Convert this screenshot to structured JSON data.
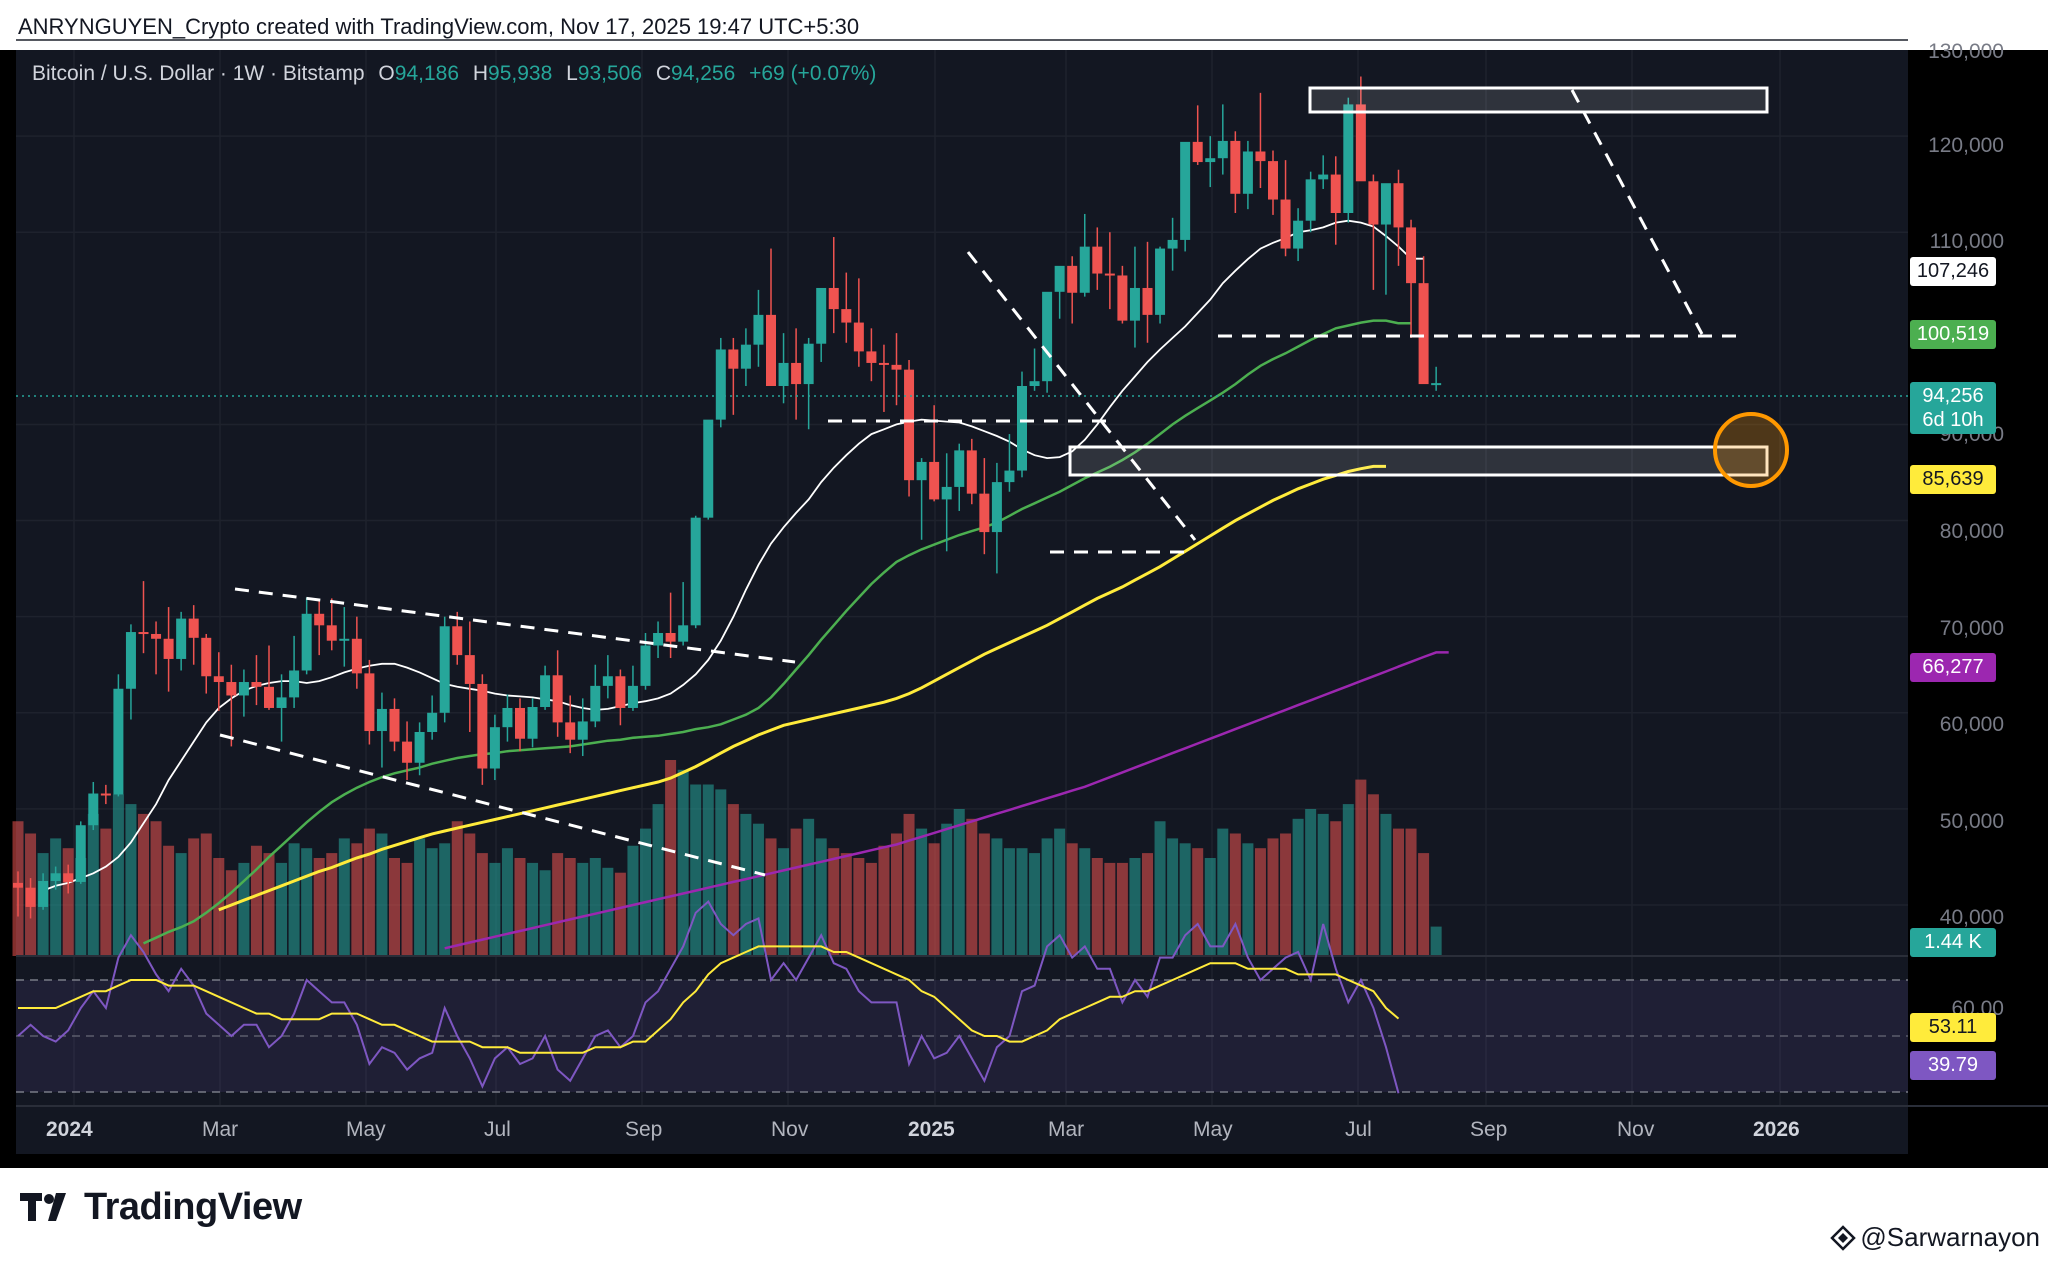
{
  "header": {
    "credit": "ANRYNGUYEN_Crypto created with TradingView.com, Nov 17, 2025 19:47 UTC+5:30"
  },
  "legend": {
    "symbol": "Bitcoin / U.S. Dollar · 1W · Bitstamp",
    "o_label": "O",
    "o": "94,186",
    "h_label": "H",
    "h": "95,938",
    "l_label": "L",
    "l": "93,506",
    "c_label": "C",
    "c": "94,256",
    "change": "+69 (+0.07%)"
  },
  "price_axis": {
    "labels": [
      "130,000",
      "120,000",
      "110,000",
      "90,000",
      "80,000",
      "70,000",
      "60,000",
      "50,000",
      "40,000"
    ]
  },
  "badges": {
    "sma_white": "107,246",
    "sma_green": "100,519",
    "price": "94,256",
    "countdown": "6d 10h",
    "sma_yellow": "85,639",
    "sma_purple": "66,277",
    "volume": "1.44 K",
    "rsi_top_label": "60.00",
    "rsi_ma": "53.11",
    "rsi": "39.79"
  },
  "time_axis": {
    "labels": [
      {
        "text": "2024",
        "bold": true
      },
      {
        "text": "Mar",
        "bold": false
      },
      {
        "text": "May",
        "bold": false
      },
      {
        "text": "Jul",
        "bold": false
      },
      {
        "text": "Sep",
        "bold": false
      },
      {
        "text": "Nov",
        "bold": false
      },
      {
        "text": "2025",
        "bold": true
      },
      {
        "text": "Mar",
        "bold": false
      },
      {
        "text": "May",
        "bold": false
      },
      {
        "text": "Jul",
        "bold": false
      },
      {
        "text": "Sep",
        "bold": false
      },
      {
        "text": "Nov",
        "bold": false
      },
      {
        "text": "2026",
        "bold": true
      }
    ]
  },
  "branding": {
    "logo": "TradingView",
    "watermark": "@Sarwarnayon"
  },
  "colors": {
    "up": "#26a69a",
    "down": "#ef5350",
    "background": "#131722",
    "sma_white": "#ffffff",
    "sma_green": "#4caf50",
    "sma_yellow": "#ffeb3b",
    "sma_purple": "#9c27b0"
  },
  "chart_data": {
    "type": "candlestick",
    "title": "Bitcoin / U.S. Dollar · 1W · Bitstamp",
    "ylim": [
      35000,
      132000
    ],
    "ticks": [
      40000,
      50000,
      60000,
      70000,
      80000,
      90000,
      110000,
      120000,
      130000
    ],
    "candles_ohlc": [
      [
        42300,
        43500,
        38800,
        41800
      ],
      [
        41800,
        42800,
        38600,
        39800
      ],
      [
        39800,
        43300,
        39500,
        42500
      ],
      [
        42500,
        44000,
        41600,
        43300
      ],
      [
        43300,
        44200,
        41200,
        42400
      ],
      [
        42400,
        48700,
        42200,
        48300
      ],
      [
        48300,
        52800,
        47800,
        51600
      ],
      [
        51600,
        52500,
        50500,
        51500
      ],
      [
        51500,
        64000,
        51300,
        62500
      ],
      [
        62500,
        69200,
        59300,
        68400
      ],
      [
        68400,
        73700,
        66200,
        68200
      ],
      [
        68200,
        69500,
        64000,
        67700
      ],
      [
        67700,
        71000,
        62200,
        65600
      ],
      [
        65600,
        70500,
        64400,
        69800
      ],
      [
        69800,
        71200,
        65000,
        67800
      ],
      [
        67800,
        68200,
        62000,
        63800
      ],
      [
        63800,
        66300,
        60200,
        63200
      ],
      [
        63200,
        65000,
        56500,
        61800
      ],
      [
        61800,
        64500,
        59600,
        63200
      ],
      [
        63200,
        66000,
        60800,
        62700
      ],
      [
        62700,
        67000,
        60300,
        60500
      ],
      [
        60500,
        64000,
        57000,
        61600
      ],
      [
        61600,
        68000,
        60500,
        64400
      ],
      [
        64400,
        72000,
        64000,
        70300
      ],
      [
        70300,
        71800,
        66000,
        69100
      ],
      [
        69100,
        71900,
        66500,
        67500
      ],
      [
        67500,
        71000,
        64800,
        67700
      ],
      [
        67700,
        70000,
        62500,
        64100
      ],
      [
        64100,
        65500,
        56700,
        58100
      ],
      [
        58100,
        62100,
        54300,
        60400
      ],
      [
        60400,
        61500,
        56000,
        57000
      ],
      [
        57000,
        59100,
        53000,
        54800
      ],
      [
        54800,
        59000,
        53500,
        58000
      ],
      [
        58000,
        61800,
        57200,
        60000
      ],
      [
        60000,
        70000,
        59000,
        69000
      ],
      [
        69000,
        70500,
        65000,
        66000
      ],
      [
        66000,
        69500,
        58000,
        63000
      ],
      [
        63000,
        64000,
        52500,
        54200
      ],
      [
        54200,
        59800,
        53000,
        58500
      ],
      [
        58500,
        61900,
        57000,
        60500
      ],
      [
        60500,
        61500,
        56000,
        57300
      ],
      [
        57300,
        61500,
        56400,
        60600
      ],
      [
        60600,
        64900,
        60300,
        63900
      ],
      [
        63900,
        66500,
        57500,
        59000
      ],
      [
        59000,
        61800,
        55800,
        57200
      ],
      [
        57200,
        61500,
        55500,
        59100
      ],
      [
        59100,
        65000,
        58500,
        62800
      ],
      [
        62800,
        66000,
        61500,
        63800
      ],
      [
        63800,
        64500,
        58700,
        60500
      ],
      [
        60500,
        64900,
        60200,
        62800
      ],
      [
        62800,
        68300,
        62400,
        67000
      ],
      [
        67000,
        69500,
        65700,
        68300
      ],
      [
        68300,
        72500,
        65700,
        67400
      ],
      [
        67400,
        73600,
        67000,
        69100
      ],
      [
        69100,
        80500,
        68800,
        80300
      ],
      [
        80300,
        90000,
        80100,
        90500
      ],
      [
        90500,
        99000,
        89700,
        97800
      ],
      [
        97800,
        99000,
        91000,
        95800
      ],
      [
        95800,
        100000,
        94000,
        98300
      ],
      [
        98300,
        104000,
        96000,
        101400
      ],
      [
        101400,
        108300,
        99000,
        94000
      ],
      [
        94000,
        99500,
        92200,
        96400
      ],
      [
        96400,
        100000,
        90500,
        94200
      ],
      [
        94200,
        99000,
        89500,
        98400
      ],
      [
        98400,
        102500,
        96500,
        104200
      ],
      [
        104200,
        109500,
        99500,
        102000
      ],
      [
        102000,
        105800,
        98500,
        100600
      ],
      [
        100600,
        105200,
        96000,
        97600
      ],
      [
        97600,
        100000,
        94500,
        96400
      ],
      [
        96400,
        98300,
        91300,
        96200
      ],
      [
        96200,
        99500,
        92000,
        95700
      ],
      [
        95700,
        96700,
        82500,
        84200
      ],
      [
        84200,
        86500,
        78000,
        86100
      ],
      [
        86100,
        92000,
        82000,
        82200
      ],
      [
        82200,
        87000,
        76800,
        83500
      ],
      [
        83500,
        88000,
        81000,
        87300
      ],
      [
        87300,
        88500,
        81700,
        82800
      ],
      [
        82800,
        86500,
        76500,
        78800
      ],
      [
        78800,
        86000,
        74500,
        84000
      ],
      [
        84000,
        89000,
        83000,
        85200
      ],
      [
        85200,
        95500,
        84500,
        94000
      ],
      [
        94000,
        97900,
        93500,
        94500
      ],
      [
        94500,
        97700,
        93300,
        103800
      ],
      [
        103800,
        106000,
        101000,
        106500
      ],
      [
        106500,
        107500,
        100500,
        103700
      ],
      [
        103700,
        111900,
        103300,
        108500
      ],
      [
        108500,
        110500,
        104000,
        105700
      ],
      [
        105700,
        110000,
        102000,
        105500
      ],
      [
        105500,
        106500,
        100500,
        100800
      ],
      [
        100800,
        108500,
        98000,
        104200
      ],
      [
        104200,
        109000,
        98500,
        101400
      ],
      [
        101400,
        108500,
        100500,
        108300
      ],
      [
        108300,
        111500,
        106000,
        109200
      ],
      [
        109200,
        119000,
        108000,
        119400
      ],
      [
        119400,
        123200,
        117000,
        117300
      ],
      [
        117300,
        120000,
        114700,
        117700
      ],
      [
        117700,
        123300,
        116000,
        119500
      ],
      [
        119500,
        120500,
        112000,
        114000
      ],
      [
        114000,
        119500,
        112400,
        118400
      ],
      [
        118400,
        124500,
        114600,
        117400
      ],
      [
        117400,
        118500,
        111800,
        113400
      ],
      [
        113400,
        117500,
        107500,
        108300
      ],
      [
        108300,
        112500,
        107000,
        111200
      ],
      [
        111200,
        116300,
        110000,
        115500
      ],
      [
        115500,
        118000,
        114500,
        116000
      ],
      [
        116000,
        117900,
        108700,
        112000
      ],
      [
        112000,
        124000,
        111000,
        123300
      ],
      [
        123300,
        126200,
        120000,
        115300
      ],
      [
        115300,
        116000,
        104000,
        110800
      ],
      [
        110800,
        114000,
        103500,
        115100
      ],
      [
        115100,
        116500,
        106500,
        110500
      ],
      [
        110500,
        111300,
        99000,
        104700
      ],
      [
        104700,
        107500,
        95000,
        94200
      ],
      [
        94200,
        96000,
        93500,
        94300
      ]
    ],
    "volume_bars": [
      55,
      50,
      42,
      48,
      44,
      40,
      58,
      52,
      66,
      62,
      58,
      55,
      45,
      42,
      48,
      50,
      40,
      35,
      38,
      45,
      42,
      38,
      46,
      44,
      40,
      42,
      48,
      46,
      52,
      50,
      40,
      38,
      48,
      44,
      46,
      55,
      50,
      42,
      38,
      44,
      40,
      38,
      35,
      42,
      40,
      38,
      40,
      36,
      34,
      45,
      52,
      62,
      80,
      76,
      70,
      70,
      68,
      62,
      58,
      54,
      48,
      44,
      52,
      56,
      48,
      44,
      42,
      40,
      38,
      45,
      50,
      58,
      52,
      46,
      54,
      60,
      56,
      50,
      48,
      44,
      44,
      42,
      48,
      52,
      46,
      44,
      40,
      38,
      38,
      40,
      42,
      55,
      48,
      46,
      44,
      40,
      52,
      50,
      46,
      44,
      48,
      50,
      56,
      60,
      58,
      55,
      62,
      72,
      66,
      58,
      52,
      52,
      42,
      12
    ],
    "volume_last": "1.44 K",
    "sma_white": [
      41500,
      42000,
      42300,
      42800,
      43300,
      44000,
      45000,
      46500,
      48500,
      50500,
      53000,
      55000,
      57000,
      59000,
      60500,
      61500,
      62300,
      62800,
      63100,
      63300,
      63300,
      63100,
      63300,
      63700,
      64200,
      64600,
      64900,
      65100,
      65100,
      64700,
      64200,
      63600,
      63000,
      62700,
      62500,
      62300,
      62000,
      61800,
      61700,
      61600,
      61400,
      61200,
      60800,
      60500,
      60300,
      60400,
      60700,
      61000,
      61200,
      61500,
      62000,
      62900,
      64000,
      65500,
      67500,
      70000,
      72800,
      75400,
      77600,
      79300,
      80800,
      82200,
      84000,
      85500,
      86800,
      88000,
      89000,
      89500,
      90000,
      90300,
      90500,
      90400,
      90300,
      90200,
      89800,
      89300,
      88800,
      88200,
      87400,
      86800,
      86500,
      86600,
      87200,
      88400,
      90000,
      91800,
      93500,
      95000,
      96500,
      97800,
      99000,
      100200,
      101600,
      103000,
      104700,
      106000,
      107200,
      108300,
      108900,
      109400,
      110000,
      110200,
      110500,
      111000,
      111200,
      111000,
      110600,
      109600,
      108500,
      107246,
      107246
    ],
    "sma_green": [
      36000,
      36600,
      37200,
      37700,
      38300,
      39200,
      40200,
      41300,
      42500,
      43700,
      45000,
      46200,
      47400,
      48600,
      49700,
      50700,
      51500,
      52200,
      52800,
      53300,
      53700,
      54000,
      54300,
      54700,
      55000,
      55300,
      55500,
      55700,
      55800,
      56000,
      56100,
      56200,
      56300,
      56400,
      56500,
      56700,
      56900,
      57100,
      57200,
      57400,
      57500,
      57600,
      57800,
      58000,
      58300,
      58500,
      58800,
      59300,
      59800,
      60500,
      61600,
      63000,
      64500,
      66000,
      67600,
      69100,
      70600,
      72000,
      73400,
      74600,
      75700,
      76400,
      77000,
      77500,
      78000,
      78500,
      78900,
      79300,
      79800,
      80500,
      81200,
      81800,
      82400,
      83000,
      83700,
      84400,
      85000,
      85600,
      86300,
      87100,
      88000,
      89000,
      90000,
      90900,
      91700,
      92500,
      93300,
      94200,
      95200,
      96100,
      96800,
      97400,
      98100,
      98800,
      99400,
      100000,
      100300,
      100600,
      100800,
      100800,
      100519,
      100519
    ],
    "sma_yellow": [
      39500,
      40000,
      40500,
      41000,
      41500,
      42000,
      42500,
      43000,
      43500,
      43900,
      44400,
      44900,
      45300,
      45800,
      46200,
      46600,
      47000,
      47400,
      47700,
      48000,
      48300,
      48600,
      48900,
      49200,
      49500,
      49800,
      50100,
      50400,
      50700,
      51000,
      51300,
      51600,
      51900,
      52200,
      52500,
      52800,
      53200,
      53800,
      54400,
      55100,
      55800,
      56500,
      57100,
      57700,
      58200,
      58700,
      59000,
      59300,
      59600,
      59900,
      60200,
      60500,
      60800,
      61100,
      61500,
      62000,
      62600,
      63300,
      64000,
      64700,
      65400,
      66100,
      66700,
      67300,
      67900,
      68500,
      69100,
      69800,
      70500,
      71200,
      71900,
      72500,
      73100,
      73800,
      74500,
      75200,
      76000,
      76800,
      77600,
      78400,
      79200,
      80000,
      80700,
      81400,
      82100,
      82700,
      83300,
      83800,
      84300,
      84700,
      85100,
      85400,
      85639,
      85639
    ],
    "sma_purple": [
      35500,
      35800,
      36100,
      36400,
      36700,
      37000,
      37300,
      37600,
      37900,
      38200,
      38500,
      38800,
      39100,
      39400,
      39700,
      40000,
      40300,
      40600,
      40900,
      41200,
      41500,
      41800,
      42100,
      42400,
      42700,
      43000,
      43300,
      43600,
      43900,
      44200,
      44500,
      44800,
      45100,
      45400,
      45700,
      46000,
      46300,
      46700,
      47100,
      47500,
      47900,
      48300,
      48700,
      49100,
      49500,
      49900,
      50300,
      50700,
      51100,
      51500,
      51900,
      52300,
      52800,
      53300,
      53800,
      54300,
      54800,
      55300,
      55800,
      56300,
      56800,
      57300,
      57800,
      58300,
      58800,
      59300,
      59800,
      60300,
      60800,
      61300,
      61800,
      62300,
      62800,
      63300,
      63800,
      64300,
      64800,
      65300,
      65800,
      66277,
      66277
    ],
    "rsi_values": [
      50,
      52,
      50,
      49,
      51,
      55,
      58,
      55,
      64,
      68,
      65,
      61,
      58,
      62,
      59,
      54,
      52,
      50,
      52,
      52,
      48,
      50,
      54,
      60,
      58,
      56,
      56,
      52,
      45,
      48,
      47,
      44,
      46,
      47,
      55,
      50,
      46,
      41,
      46,
      48,
      45,
      46,
      50,
      44,
      42,
      46,
      50,
      51,
      48,
      50,
      56,
      58,
      62,
      66,
      72,
      74,
      70,
      68,
      70,
      71,
      60,
      63,
      60,
      64,
      68,
      63,
      62,
      58,
      56,
      56,
      56,
      45,
      50,
      46,
      47,
      50,
      46,
      42,
      48,
      50,
      58,
      59,
      66,
      68,
      64,
      66,
      62,
      62,
      56,
      60,
      57,
      64,
      64,
      68,
      70,
      66,
      66,
      70,
      64,
      60,
      62,
      64,
      65,
      60,
      70,
      62,
      56,
      60,
      55,
      48,
      39.79
    ],
    "rsi_ma": [
      55,
      55,
      55,
      55,
      56,
      57,
      58,
      58,
      59,
      60,
      60,
      60,
      59,
      59,
      59,
      58,
      57,
      56,
      55,
      54,
      54,
      53,
      53,
      53,
      53,
      54,
      54,
      54,
      53,
      52,
      52,
      51,
      50,
      49,
      49,
      49,
      49,
      48,
      48,
      48,
      47,
      47,
      47,
      47,
      47,
      47,
      48,
      48,
      48,
      49,
      49,
      51,
      53,
      56,
      58,
      61,
      63,
      64,
      65,
      66,
      66,
      66,
      66,
      66,
      66,
      65,
      65,
      64,
      63,
      62,
      61,
      60,
      58,
      57,
      55,
      53,
      51,
      50,
      50,
      49,
      49,
      50,
      51,
      53,
      54,
      55,
      56,
      57,
      57,
      58,
      58,
      59,
      60,
      61,
      62,
      63,
      63,
      63,
      62,
      62,
      62,
      62,
      61,
      61,
      61,
      61,
      60,
      59,
      58,
      55,
      53.11
    ]
  }
}
